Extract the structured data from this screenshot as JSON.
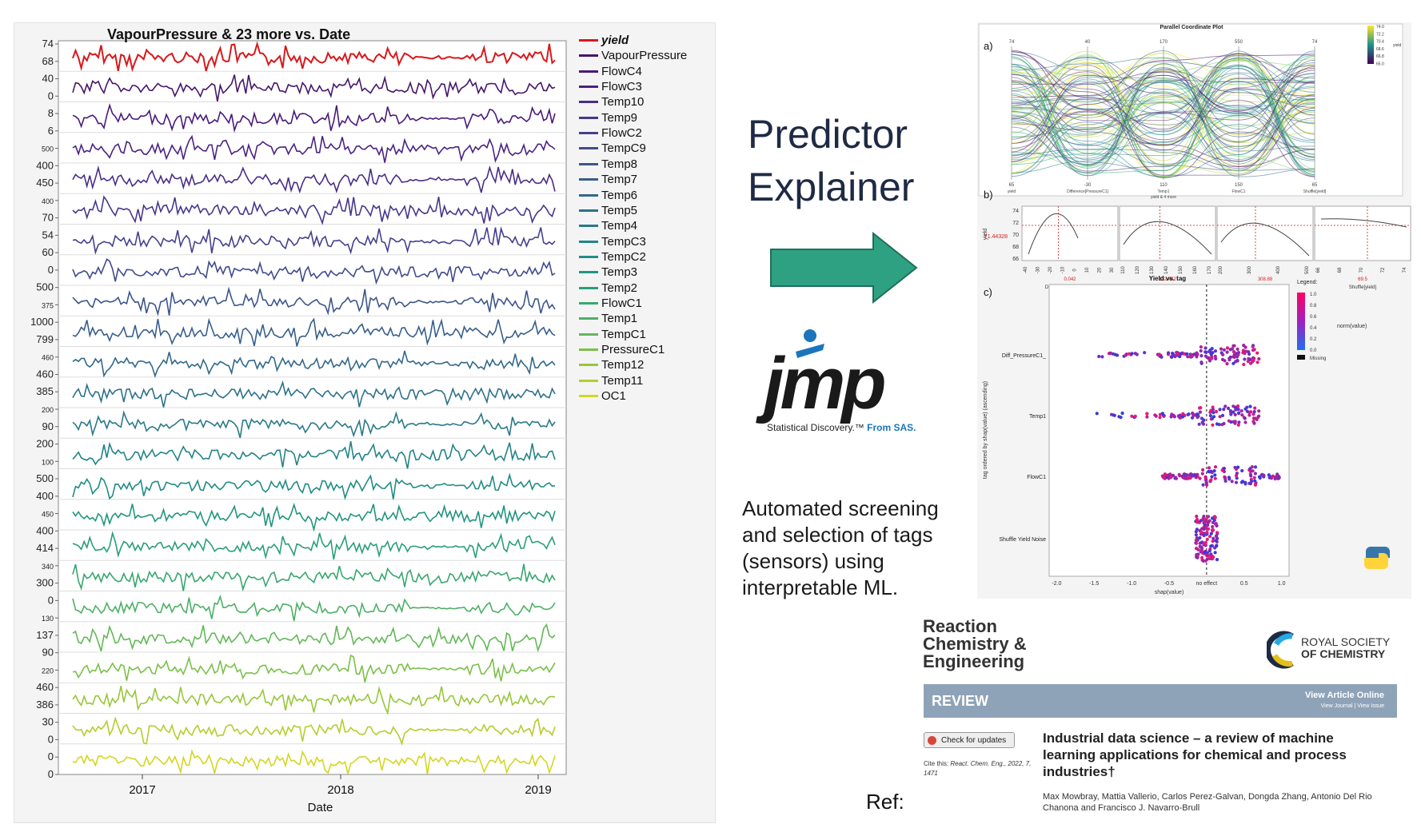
{
  "left_chart": {
    "title": "VapourPressure & 23 more vs. Date",
    "xlabel": "Date",
    "x_ticks": [
      "2017",
      "2018",
      "2019"
    ],
    "y_tick_labels": [
      "74",
      "68",
      "40",
      "0",
      "8",
      "6",
      "500",
      "400",
      "450",
      "400",
      "70",
      "54",
      "60",
      "0",
      "500",
      "375",
      "1000",
      "799",
      "460",
      "460",
      "385",
      "200",
      "90",
      "200",
      "100",
      "500",
      "400",
      "450",
      "400",
      "414",
      "340",
      "300",
      "0",
      "130",
      "137",
      "90",
      "220",
      "460",
      "386",
      "30",
      "0",
      "0",
      "0"
    ],
    "legend": [
      {
        "name": "yield",
        "color": "#d7191c"
      },
      {
        "name": "VapourPressure",
        "color": "#46166b"
      },
      {
        "name": "FlowC4",
        "color": "#4a1a7a"
      },
      {
        "name": "FlowC3",
        "color": "#4b2382"
      },
      {
        "name": "Temp10",
        "color": "#4a2d87"
      },
      {
        "name": "Temp9",
        "color": "#48378b"
      },
      {
        "name": "FlowC2",
        "color": "#45418d"
      },
      {
        "name": "TempC9",
        "color": "#414b8e"
      },
      {
        "name": "Temp8",
        "color": "#3c558d"
      },
      {
        "name": "Temp7",
        "color": "#375f8c"
      },
      {
        "name": "Temp6",
        "color": "#32688b"
      },
      {
        "name": "Temp5",
        "color": "#2d718a"
      },
      {
        "name": "Temp4",
        "color": "#297a89"
      },
      {
        "name": "TempC3",
        "color": "#248387"
      },
      {
        "name": "TempC2",
        "color": "#218c85"
      },
      {
        "name": "Temp3",
        "color": "#21957f"
      },
      {
        "name": "Temp2",
        "color": "#2a9e78"
      },
      {
        "name": "FlowC1",
        "color": "#38a76f"
      },
      {
        "name": "Temp1",
        "color": "#4cb064"
      },
      {
        "name": "TempC1",
        "color": "#62b857"
      },
      {
        "name": "PressureC1",
        "color": "#7bc049"
      },
      {
        "name": "Temp12",
        "color": "#98c73a"
      },
      {
        "name": "Temp11",
        "color": "#b6cd2d"
      },
      {
        "name": "OC1",
        "color": "#d4d621"
      }
    ]
  },
  "predictor_title_line1": "Predictor",
  "predictor_title_line2": "Explainer",
  "jmp": {
    "word": "jmp",
    "tagline": "Statistical Discovery.™",
    "from": "From SAS."
  },
  "description": "Automated screening and selection of tags (sensors) using interpretable ML.",
  "ref_label": "Ref:",
  "figure": {
    "a_label": "a)",
    "a_title": "Parallel Coordinate Plot",
    "a_axes": [
      "yield",
      "Difference[PressureC1]",
      "Temp1",
      "FlowC1",
      "Shuffle[yield]"
    ],
    "a_axis_top": [
      "74",
      "40",
      "170",
      "550",
      "74"
    ],
    "a_axis_bottom": [
      "65",
      "-30",
      "110",
      "150",
      "65"
    ],
    "a_xlabel": "yield & 4 more",
    "a_colorbar": [
      "74.0",
      "72.2",
      "70.4",
      "68.6",
      "66.8",
      "65.0"
    ],
    "a_colorbar_label": "yield",
    "b_label": "b)",
    "b_ylabel": "yield",
    "b_yticks": [
      "74",
      "72",
      "70",
      "68",
      "66"
    ],
    "b_value": "71.44328",
    "b_panels": [
      {
        "name": "Difference[PressureC1]",
        "value": "0.042",
        "ticks": [
          "-40",
          "-30",
          "-20",
          "-10",
          "0",
          "10",
          "20",
          "30"
        ]
      },
      {
        "name": "Temp1",
        "value": "132.442",
        "ticks": [
          "110",
          "120",
          "130",
          "140",
          "150",
          "160",
          "170"
        ]
      },
      {
        "name": "FlowC1",
        "value": "308.88",
        "ticks": [
          "200",
          "300",
          "400",
          "500"
        ]
      },
      {
        "name": "Shuffle[yield]",
        "value": "69.5",
        "ticks": [
          "66",
          "68",
          "70",
          "72",
          "74"
        ]
      }
    ],
    "c_label": "c)",
    "c_title": "Yield vs. tag",
    "c_ylabel": "tag ordered by shap(value) (ascending)",
    "c_xlabel": "shap(value)",
    "c_tags": [
      "Diff_PressureC1_",
      "Temp1",
      "FlowC1",
      "Shuffle Yield Noise"
    ],
    "c_xticks": [
      "-2.0",
      "-1.5",
      "-1.0",
      "-0.5",
      "no effect",
      "0.5",
      "1.0"
    ],
    "c_legend_title": "Legend:",
    "c_legend_ticks": [
      "1.0",
      "0.8",
      "0.6",
      "0.4",
      "0.2",
      "0.0"
    ],
    "c_legend_label": "norm(value)",
    "c_legend_missing": "Missing"
  },
  "paper": {
    "journal_line1": "Reaction",
    "journal_line2": "Chemistry &",
    "journal_line3": "Engineering",
    "rsc_line1": "ROYAL SOCIETY",
    "rsc_line2": "OF CHEMISTRY",
    "section": "REVIEW",
    "view_online": "View Article Online",
    "view_sub": "View Journal | View Issue",
    "check_updates": "Check for updates",
    "cite_label": "Cite this:",
    "cite_ref": "React. Chem. Eng., 2022, 7, 1471",
    "title": "Industrial data science – a review of machine learning applications for chemical and process industries†",
    "authors": "Max Mowbray, Mattia Vallerio, Carlos Perez-Galvan, Dongda Zhang, Antonio Del Rio Chanona and Francisco J. Navarro-Brull"
  }
}
